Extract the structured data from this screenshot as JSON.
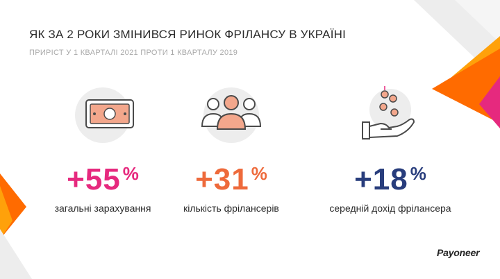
{
  "title": "ЯК ЗА 2 РОКИ ЗМІНИВСЯ РИНОК ФРІЛАНСУ В УКРАЇНІ",
  "subtitle": "ПРИРІСТ У 1 КВАРТАЛІ 2021 ПРОТИ 1 КВАРТАЛУ 2019",
  "stats": [
    {
      "value": "+55",
      "unit": "%",
      "label": "загальні зарахування",
      "color": "#e6297e",
      "icon": "money-bill-icon"
    },
    {
      "value": "+31",
      "unit": "%",
      "label": "кількість фрілансерів",
      "color": "#ee6a3b",
      "icon": "people-group-icon"
    },
    {
      "value": "+18",
      "unit": "%",
      "label": "середній дохід фрілансера",
      "color": "#283d7c",
      "icon": "hand-coins-icon"
    }
  ],
  "brand": {
    "logo_text": "Payoneer",
    "colors": {
      "orange": "#ff6b00",
      "orange_light": "#ffa10a",
      "pink": "#e6297e",
      "grey": "#ededed",
      "icon_peach": "#f3a78c",
      "icon_outline": "#4a4a4a"
    }
  }
}
